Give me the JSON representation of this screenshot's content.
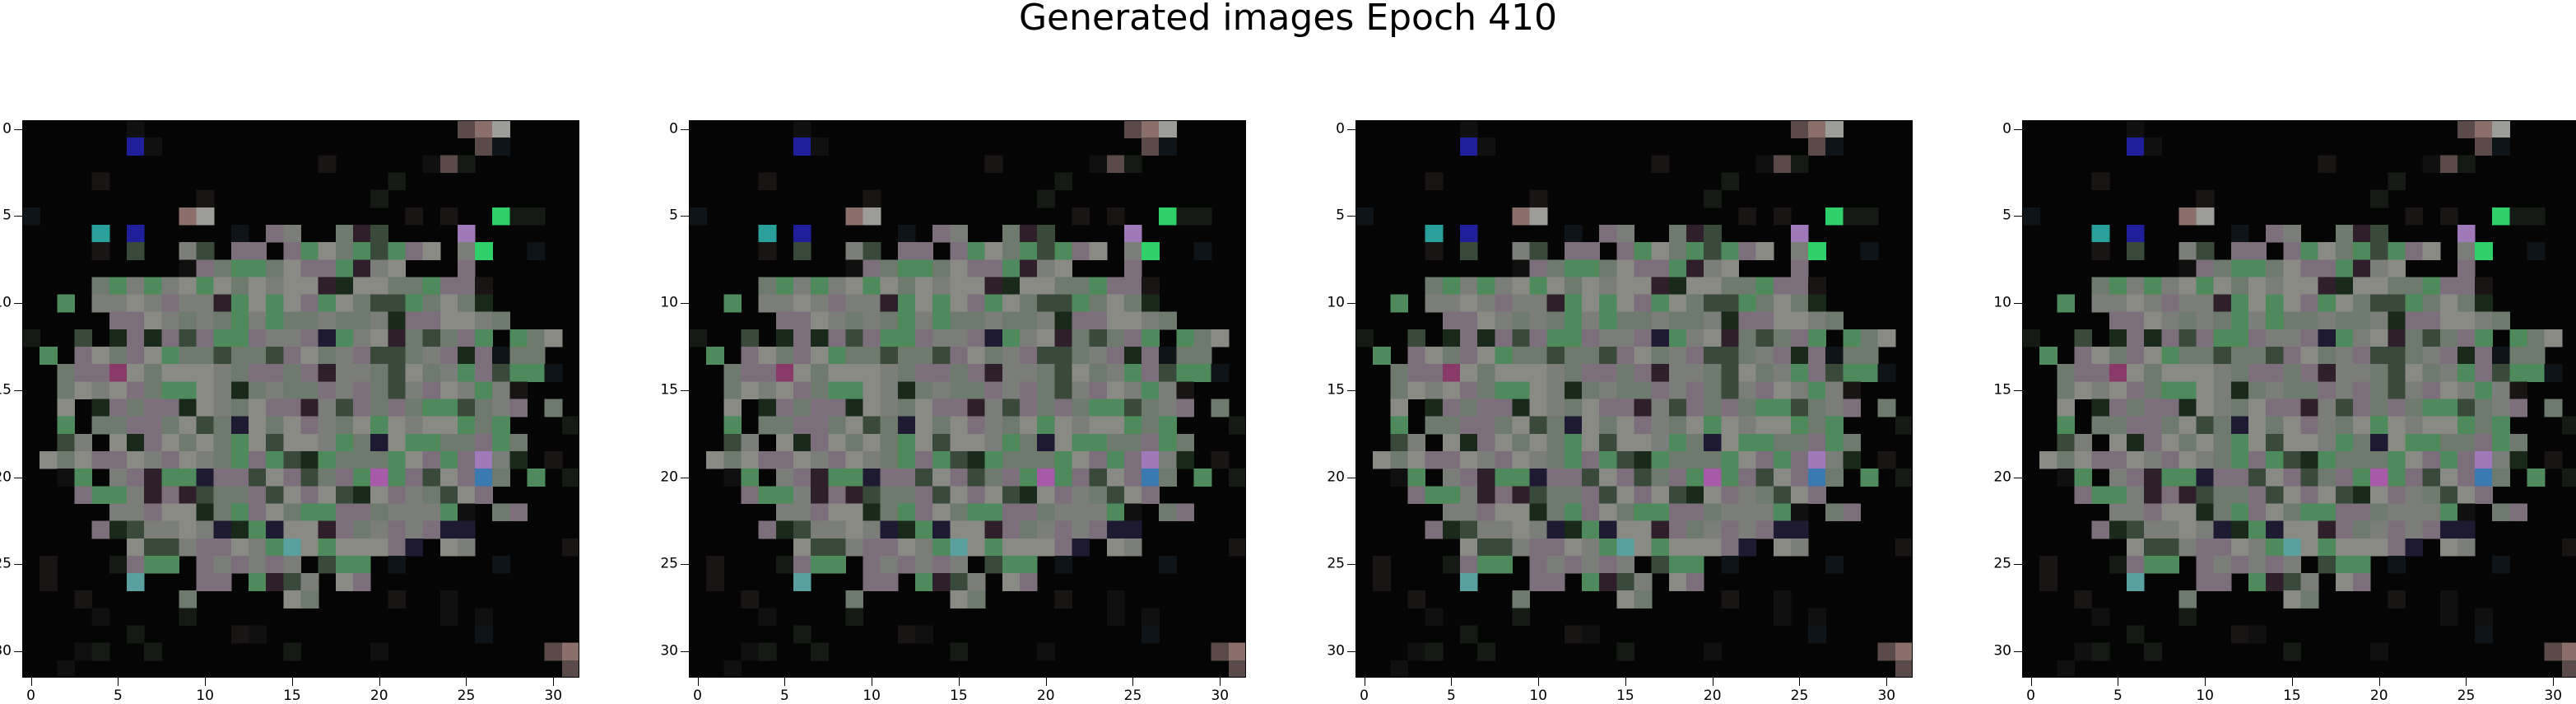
{
  "figure": {
    "title": "Generated images Epoch 410"
  },
  "panel_count": 4,
  "ticks": {
    "x": [
      "0",
      "5",
      "10",
      "15",
      "20",
      "25",
      "30"
    ],
    "y": [
      "0",
      "5",
      "10",
      "15",
      "20",
      "25",
      "30"
    ]
  },
  "image": {
    "grid_size": 32,
    "background_color": "#050505",
    "palette": [
      "#050505",
      "#8a8a85",
      "#7a7d78",
      "#6d7a6d",
      "#7c6e7a",
      "#4e8a5c",
      "#3a4a3a",
      "#2e1f2a",
      "#1f1a33",
      "#1a2a1a",
      "#1f1f9a",
      "#2aa09a",
      "#2fd06a",
      "#a07ab8",
      "#a65aa8",
      "#8a3a6a",
      "#5aa0a0",
      "#3a7ab0",
      "#8a6f6a",
      "#9c9c98",
      "#5a4a4a"
    ]
  }
}
